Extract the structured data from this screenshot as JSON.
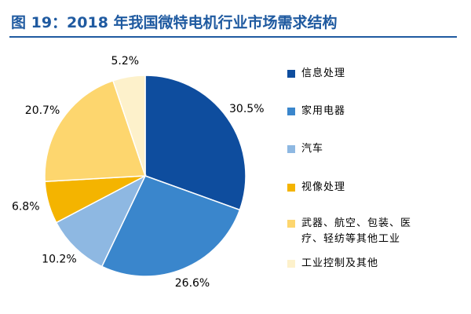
{
  "chart_data": {
    "type": "pie",
    "title": "图 19：2018 年我国微特电机行业市场需求结构",
    "categories": [
      "信息处理",
      "家用电器",
      "汽车",
      "视像处理",
      "武器、航空、包装、医疗、轻纺等其他工业",
      "工业控制及其他"
    ],
    "values": [
      30.5,
      26.6,
      10.2,
      6.8,
      20.7,
      5.2
    ],
    "value_labels": [
      "30.5%",
      "26.6%",
      "10.2%",
      "6.8%",
      "20.7%",
      "5.2%"
    ],
    "colors": [
      "#0e4d9e",
      "#3a86cc",
      "#8eb8e2",
      "#f4b400",
      "#fdd66e",
      "#fdf1cb"
    ],
    "legend": "right"
  }
}
